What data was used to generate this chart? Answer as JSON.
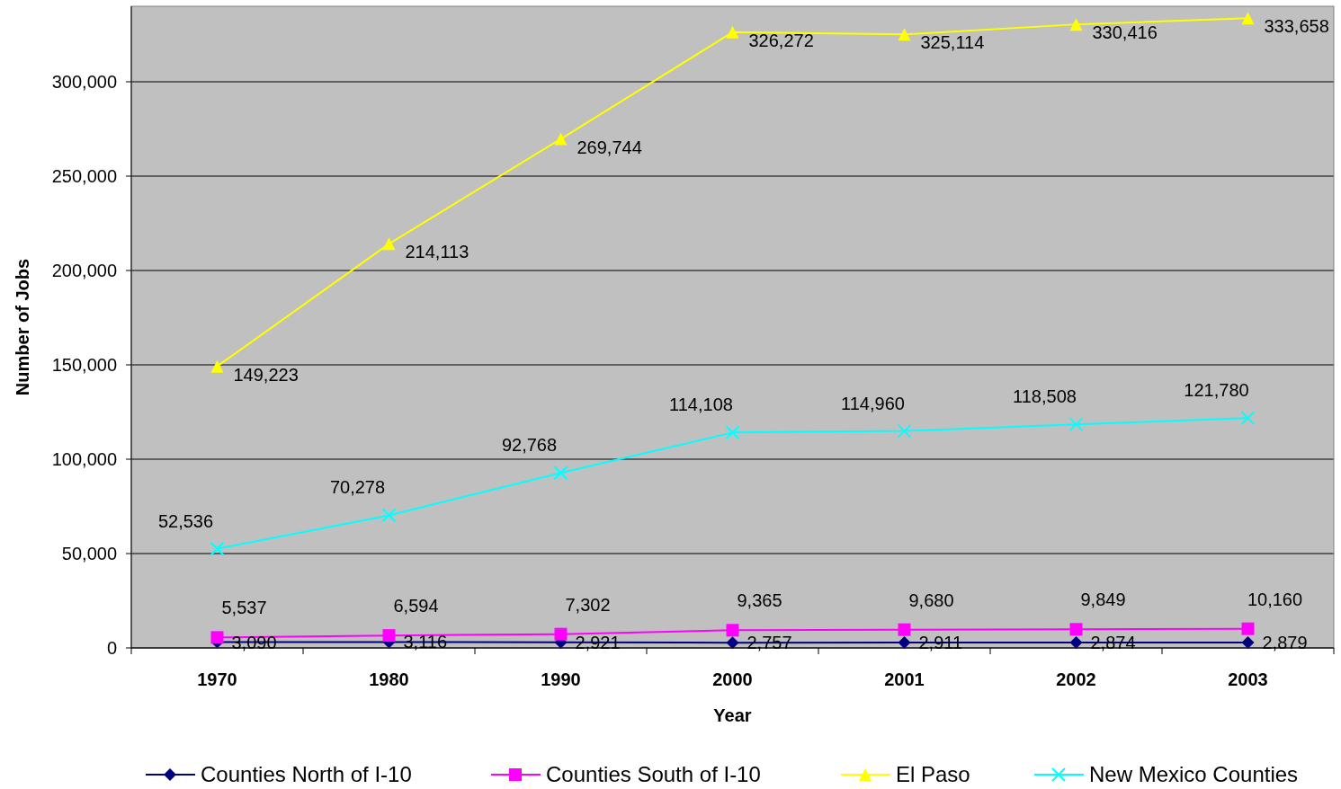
{
  "chart_data": {
    "type": "line",
    "xlabel": "Year",
    "ylabel": "Number of Jobs",
    "categories": [
      "1970",
      "1980",
      "1990",
      "2000",
      "2001",
      "2002",
      "2003"
    ],
    "series": [
      {
        "name": "Counties North of I-10",
        "color": "#000080",
        "marker": "diamond",
        "values": [
          3090,
          3116,
          2921,
          2757,
          2911,
          2874,
          2879
        ],
        "value_labels": [
          "3,090",
          "3,116",
          "2,921",
          "2,757",
          "2,911",
          "2,874",
          "2,879"
        ]
      },
      {
        "name": "Counties South of I-10",
        "color": "#ff00ff",
        "marker": "square",
        "values": [
          5537,
          6594,
          7302,
          9365,
          9680,
          9849,
          10160
        ],
        "value_labels": [
          "5,537",
          "6,594",
          "7,302",
          "9,365",
          "9,680",
          "9,849",
          "10,160"
        ]
      },
      {
        "name": "El Paso",
        "color": "#ffff00",
        "marker": "triangle",
        "values": [
          149223,
          214113,
          269744,
          326272,
          325114,
          330416,
          333658
        ],
        "value_labels": [
          "149,223",
          "214,113",
          "269,744",
          "326,272",
          "325,114",
          "330,416",
          "333,658"
        ]
      },
      {
        "name": "New Mexico Counties",
        "color": "#00ffff",
        "marker": "cross",
        "values": [
          52536,
          70278,
          92768,
          114108,
          114960,
          118508,
          121780
        ],
        "value_labels": [
          "52,536",
          "70,278",
          "92,768",
          "114,108",
          "114,960",
          "118,508",
          "121,780"
        ]
      }
    ],
    "ylim": [
      0,
      340000
    ],
    "yticks": [
      {
        "value": 0,
        "label": "0"
      },
      {
        "value": 50000,
        "label": "50,000"
      },
      {
        "value": 100000,
        "label": "100,000"
      },
      {
        "value": 150000,
        "label": "150,000"
      },
      {
        "value": 200000,
        "label": "200,000"
      },
      {
        "value": 250000,
        "label": "250,000"
      },
      {
        "value": 300000,
        "label": "300,000"
      }
    ],
    "grid": "y",
    "legend": "bottom"
  }
}
